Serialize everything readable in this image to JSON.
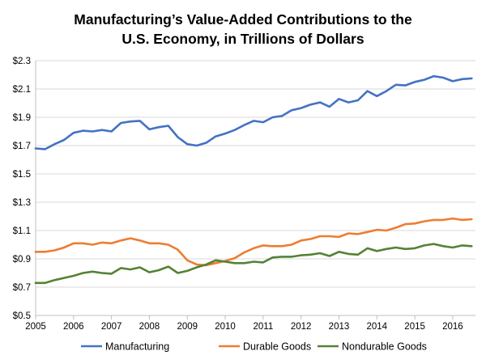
{
  "chart_data": {
    "type": "line",
    "title_lines": [
      "Manufacturing’s  Value-Added Contributions  to the",
      "U.S. Economy, in Trillions  of Dollars"
    ],
    "x": [
      2005,
      2005.25,
      2005.5,
      2005.75,
      2006,
      2006.25,
      2006.5,
      2006.75,
      2007,
      2007.25,
      2007.5,
      2007.75,
      2008,
      2008.25,
      2008.5,
      2008.75,
      2009,
      2009.25,
      2009.5,
      2009.75,
      2010,
      2010.25,
      2010.5,
      2010.75,
      2011,
      2011.25,
      2011.5,
      2011.75,
      2012,
      2012.25,
      2012.5,
      2012.75,
      2013,
      2013.25,
      2013.5,
      2013.75,
      2014,
      2014.25,
      2014.5,
      2014.75,
      2015,
      2015.25,
      2015.5,
      2015.75,
      2016,
      2016.25,
      2016.5
    ],
    "xlim": [
      2005,
      2016.6
    ],
    "x_ticks": [
      "2005",
      "2006",
      "2007",
      "2008",
      "2009",
      "2010",
      "2011",
      "2012",
      "2013",
      "2014",
      "2015",
      "2016"
    ],
    "ylim": [
      0.5,
      2.3
    ],
    "y_ticks": [
      0.5,
      0.7,
      0.9,
      1.1,
      1.3,
      1.5,
      1.7,
      1.9,
      2.1,
      2.3
    ],
    "y_tick_labels": [
      "$0.5",
      "$0.7",
      "$0.9",
      "$1.1",
      "$1.3",
      "$1.5",
      "$1.7",
      "$1.9",
      "$2.1",
      "$2.3"
    ],
    "grid": true,
    "legend_position": "bottom",
    "series": [
      {
        "name": "Manufacturing",
        "color": "#4472C4",
        "values": [
          1.68,
          1.675,
          1.71,
          1.74,
          1.79,
          1.805,
          1.8,
          1.81,
          1.8,
          1.86,
          1.87,
          1.875,
          1.815,
          1.83,
          1.84,
          1.76,
          1.71,
          1.7,
          1.72,
          1.765,
          1.785,
          1.81,
          1.845,
          1.875,
          1.865,
          1.9,
          1.91,
          1.95,
          1.965,
          1.99,
          2.005,
          1.975,
          2.03,
          2.005,
          2.02,
          2.085,
          2.05,
          2.085,
          2.13,
          2.125,
          2.15,
          2.165,
          2.19,
          2.18,
          2.155,
          2.17,
          2.175
        ]
      },
      {
        "name": "Durable Goods",
        "color": "#ED7D31",
        "values": [
          0.95,
          0.95,
          0.96,
          0.98,
          1.01,
          1.01,
          1.0,
          1.015,
          1.01,
          1.03,
          1.045,
          1.03,
          1.01,
          1.01,
          1.0,
          0.965,
          0.89,
          0.86,
          0.855,
          0.87,
          0.885,
          0.905,
          0.945,
          0.975,
          0.995,
          0.99,
          0.99,
          1.0,
          1.03,
          1.04,
          1.06,
          1.06,
          1.055,
          1.08,
          1.075,
          1.09,
          1.105,
          1.1,
          1.12,
          1.145,
          1.15,
          1.165,
          1.175,
          1.175,
          1.185,
          1.175,
          1.18
        ]
      },
      {
        "name": "Nondurable Goods",
        "color": "#548235",
        "values": [
          0.73,
          0.73,
          0.75,
          0.765,
          0.78,
          0.8,
          0.81,
          0.8,
          0.795,
          0.835,
          0.825,
          0.84,
          0.805,
          0.82,
          0.845,
          0.8,
          0.815,
          0.84,
          0.86,
          0.89,
          0.88,
          0.87,
          0.87,
          0.88,
          0.875,
          0.91,
          0.915,
          0.915,
          0.925,
          0.93,
          0.94,
          0.92,
          0.95,
          0.935,
          0.93,
          0.975,
          0.955,
          0.97,
          0.98,
          0.97,
          0.975,
          0.995,
          1.005,
          0.99,
          0.98,
          0.995,
          0.99
        ]
      }
    ]
  }
}
